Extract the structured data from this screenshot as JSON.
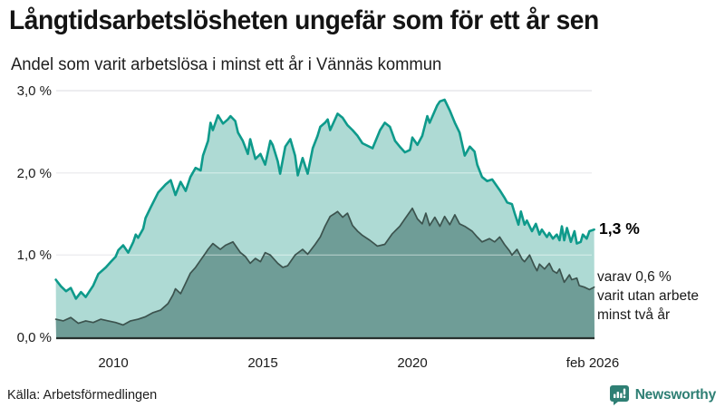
{
  "header": {
    "title": "Långtidsarbetslösheten ungefär som för ett år sen",
    "subtitle": "Andel som varit arbetslösa i minst ett år i Vännäs kommun"
  },
  "chart_data": {
    "type": "area",
    "title": "Andel som varit arbetslösa i minst ett år i Vännäs kommun",
    "xlabel": "",
    "ylabel": "",
    "x_axis": {
      "ticks": [
        "2010",
        "2015",
        "2020",
        "feb 2026"
      ],
      "tick_positions": [
        2010,
        2015,
        2020,
        2026.08
      ],
      "range": [
        2008.08,
        2026.17
      ]
    },
    "y_axis": {
      "ticks": [
        "3,0 %",
        "2,0 %",
        "1,0 %",
        "0,0 %"
      ],
      "tick_values": [
        3,
        2,
        1,
        0
      ],
      "range": [
        0,
        3
      ],
      "grid": true
    },
    "series": [
      {
        "name": "Arbetslösa minst ett år",
        "stroke": "#0e9a8b",
        "fill": "#aedad4",
        "latest_label": "1,3 %",
        "points": [
          [
            2008.08,
            0.7
          ],
          [
            2008.25,
            0.62
          ],
          [
            2008.42,
            0.56
          ],
          [
            2008.58,
            0.6
          ],
          [
            2008.75,
            0.47
          ],
          [
            2008.92,
            0.55
          ],
          [
            2009.08,
            0.49
          ],
          [
            2009.33,
            0.63
          ],
          [
            2009.5,
            0.77
          ],
          [
            2009.75,
            0.85
          ],
          [
            2009.92,
            0.92
          ],
          [
            2010.08,
            0.98
          ],
          [
            2010.17,
            1.06
          ],
          [
            2010.33,
            1.12
          ],
          [
            2010.5,
            1.03
          ],
          [
            2010.67,
            1.16
          ],
          [
            2010.75,
            1.25
          ],
          [
            2010.83,
            1.21
          ],
          [
            2011.0,
            1.32
          ],
          [
            2011.08,
            1.45
          ],
          [
            2011.25,
            1.58
          ],
          [
            2011.5,
            1.76
          ],
          [
            2011.75,
            1.86
          ],
          [
            2011.92,
            1.91
          ],
          [
            2012.08,
            1.73
          ],
          [
            2012.25,
            1.89
          ],
          [
            2012.42,
            1.78
          ],
          [
            2012.58,
            1.95
          ],
          [
            2012.75,
            2.06
          ],
          [
            2012.92,
            2.03
          ],
          [
            2013.0,
            2.21
          ],
          [
            2013.17,
            2.39
          ],
          [
            2013.25,
            2.61
          ],
          [
            2013.33,
            2.52
          ],
          [
            2013.5,
            2.7
          ],
          [
            2013.67,
            2.6
          ],
          [
            2013.83,
            2.65
          ],
          [
            2013.92,
            2.69
          ],
          [
            2014.08,
            2.63
          ],
          [
            2014.17,
            2.49
          ],
          [
            2014.33,
            2.39
          ],
          [
            2014.5,
            2.23
          ],
          [
            2014.58,
            2.41
          ],
          [
            2014.75,
            2.17
          ],
          [
            2014.92,
            2.23
          ],
          [
            2015.08,
            2.1
          ],
          [
            2015.25,
            2.39
          ],
          [
            2015.33,
            2.34
          ],
          [
            2015.5,
            2.14
          ],
          [
            2015.58,
            1.99
          ],
          [
            2015.75,
            2.32
          ],
          [
            2015.92,
            2.41
          ],
          [
            2016.08,
            2.21
          ],
          [
            2016.17,
            1.97
          ],
          [
            2016.33,
            2.18
          ],
          [
            2016.5,
            1.99
          ],
          [
            2016.67,
            2.3
          ],
          [
            2016.83,
            2.45
          ],
          [
            2016.92,
            2.56
          ],
          [
            2017.08,
            2.61
          ],
          [
            2017.17,
            2.65
          ],
          [
            2017.25,
            2.52
          ],
          [
            2017.5,
            2.72
          ],
          [
            2017.67,
            2.67
          ],
          [
            2017.83,
            2.58
          ],
          [
            2018.0,
            2.52
          ],
          [
            2018.17,
            2.45
          ],
          [
            2018.33,
            2.36
          ],
          [
            2018.67,
            2.3
          ],
          [
            2018.92,
            2.52
          ],
          [
            2019.08,
            2.61
          ],
          [
            2019.25,
            2.56
          ],
          [
            2019.42,
            2.39
          ],
          [
            2019.58,
            2.32
          ],
          [
            2019.75,
            2.25
          ],
          [
            2019.92,
            2.28
          ],
          [
            2020.0,
            2.43
          ],
          [
            2020.17,
            2.34
          ],
          [
            2020.33,
            2.45
          ],
          [
            2020.5,
            2.69
          ],
          [
            2020.58,
            2.61
          ],
          [
            2020.83,
            2.82
          ],
          [
            2020.92,
            2.87
          ],
          [
            2021.08,
            2.89
          ],
          [
            2021.25,
            2.76
          ],
          [
            2021.42,
            2.61
          ],
          [
            2021.58,
            2.49
          ],
          [
            2021.75,
            2.21
          ],
          [
            2021.92,
            2.32
          ],
          [
            2022.08,
            2.26
          ],
          [
            2022.17,
            2.1
          ],
          [
            2022.33,
            1.95
          ],
          [
            2022.5,
            1.9
          ],
          [
            2022.67,
            1.92
          ],
          [
            2022.92,
            1.79
          ],
          [
            2023.08,
            1.7
          ],
          [
            2023.17,
            1.64
          ],
          [
            2023.33,
            1.62
          ],
          [
            2023.42,
            1.51
          ],
          [
            2023.55,
            1.37
          ],
          [
            2023.63,
            1.53
          ],
          [
            2023.75,
            1.37
          ],
          [
            2023.83,
            1.42
          ],
          [
            2024.0,
            1.29
          ],
          [
            2024.13,
            1.38
          ],
          [
            2024.25,
            1.25
          ],
          [
            2024.33,
            1.31
          ],
          [
            2024.5,
            1.22
          ],
          [
            2024.58,
            1.27
          ],
          [
            2024.7,
            1.2
          ],
          [
            2024.83,
            1.25
          ],
          [
            2024.92,
            1.18
          ],
          [
            2025.0,
            1.35
          ],
          [
            2025.08,
            1.18
          ],
          [
            2025.17,
            1.33
          ],
          [
            2025.3,
            1.16
          ],
          [
            2025.42,
            1.29
          ],
          [
            2025.5,
            1.14
          ],
          [
            2025.63,
            1.16
          ],
          [
            2025.7,
            1.25
          ],
          [
            2025.83,
            1.2
          ],
          [
            2025.92,
            1.29
          ],
          [
            2026.08,
            1.31
          ]
        ]
      },
      {
        "name": "Arbetslösa minst två år",
        "stroke": "#3c534e",
        "fill": "#6f9d97",
        "latest_label": "0,6 %",
        "points": [
          [
            2008.08,
            0.22
          ],
          [
            2008.33,
            0.2
          ],
          [
            2008.58,
            0.24
          ],
          [
            2008.83,
            0.17
          ],
          [
            2009.08,
            0.2
          ],
          [
            2009.33,
            0.18
          ],
          [
            2009.58,
            0.22
          ],
          [
            2009.83,
            0.2
          ],
          [
            2010.08,
            0.18
          ],
          [
            2010.33,
            0.15
          ],
          [
            2010.58,
            0.2
          ],
          [
            2010.83,
            0.22
          ],
          [
            2011.08,
            0.25
          ],
          [
            2011.33,
            0.3
          ],
          [
            2011.58,
            0.33
          ],
          [
            2011.83,
            0.41
          ],
          [
            2012.0,
            0.52
          ],
          [
            2012.08,
            0.59
          ],
          [
            2012.25,
            0.53
          ],
          [
            2012.42,
            0.66
          ],
          [
            2012.58,
            0.78
          ],
          [
            2012.75,
            0.85
          ],
          [
            2012.92,
            0.94
          ],
          [
            2013.08,
            1.02
          ],
          [
            2013.17,
            1.07
          ],
          [
            2013.33,
            1.14
          ],
          [
            2013.58,
            1.07
          ],
          [
            2013.75,
            1.12
          ],
          [
            2014.0,
            1.16
          ],
          [
            2014.25,
            1.03
          ],
          [
            2014.42,
            0.98
          ],
          [
            2014.58,
            0.9
          ],
          [
            2014.75,
            0.96
          ],
          [
            2014.92,
            0.92
          ],
          [
            2015.08,
            1.03
          ],
          [
            2015.25,
            1.0
          ],
          [
            2015.5,
            0.9
          ],
          [
            2015.67,
            0.85
          ],
          [
            2015.83,
            0.87
          ],
          [
            2016.08,
            1.0
          ],
          [
            2016.33,
            1.07
          ],
          [
            2016.5,
            1.01
          ],
          [
            2016.75,
            1.13
          ],
          [
            2016.92,
            1.22
          ],
          [
            2017.08,
            1.35
          ],
          [
            2017.25,
            1.47
          ],
          [
            2017.42,
            1.51
          ],
          [
            2017.5,
            1.53
          ],
          [
            2017.67,
            1.46
          ],
          [
            2017.83,
            1.51
          ],
          [
            2018.0,
            1.36
          ],
          [
            2018.17,
            1.29
          ],
          [
            2018.33,
            1.24
          ],
          [
            2018.58,
            1.18
          ],
          [
            2018.83,
            1.11
          ],
          [
            2019.08,
            1.13
          ],
          [
            2019.33,
            1.26
          ],
          [
            2019.58,
            1.35
          ],
          [
            2019.75,
            1.44
          ],
          [
            2020.0,
            1.57
          ],
          [
            2020.17,
            1.44
          ],
          [
            2020.33,
            1.38
          ],
          [
            2020.45,
            1.51
          ],
          [
            2020.58,
            1.36
          ],
          [
            2020.75,
            1.46
          ],
          [
            2020.92,
            1.35
          ],
          [
            2021.08,
            1.47
          ],
          [
            2021.25,
            1.37
          ],
          [
            2021.42,
            1.49
          ],
          [
            2021.58,
            1.38
          ],
          [
            2021.75,
            1.35
          ],
          [
            2022.0,
            1.29
          ],
          [
            2022.17,
            1.22
          ],
          [
            2022.33,
            1.16
          ],
          [
            2022.58,
            1.2
          ],
          [
            2022.75,
            1.16
          ],
          [
            2022.92,
            1.22
          ],
          [
            2023.08,
            1.13
          ],
          [
            2023.25,
            1.05
          ],
          [
            2023.33,
            1.0
          ],
          [
            2023.5,
            1.07
          ],
          [
            2023.67,
            0.95
          ],
          [
            2023.75,
            0.92
          ],
          [
            2023.92,
            1.0
          ],
          [
            2024.08,
            0.87
          ],
          [
            2024.17,
            0.81
          ],
          [
            2024.25,
            0.89
          ],
          [
            2024.42,
            0.83
          ],
          [
            2024.58,
            0.9
          ],
          [
            2024.7,
            0.81
          ],
          [
            2024.83,
            0.78
          ],
          [
            2024.92,
            0.83
          ],
          [
            2025.08,
            0.67
          ],
          [
            2025.25,
            0.76
          ],
          [
            2025.33,
            0.7
          ],
          [
            2025.5,
            0.72
          ],
          [
            2025.58,
            0.63
          ],
          [
            2025.75,
            0.61
          ],
          [
            2025.92,
            0.58
          ],
          [
            2026.08,
            0.61
          ]
        ]
      }
    ],
    "annotations": [
      {
        "text": "1,3 %"
      },
      {
        "text": "varav 0,6 %\nvarit utan arbete\nminst två år"
      }
    ],
    "legend_position": "none",
    "colors": {
      "gridline": "#e2e2e6",
      "baseline": "#28322f",
      "background": "#ffffff"
    }
  },
  "annotations": {
    "latest_value": "1,3 %",
    "secondary": "varav 0,6 %\nvarit utan arbete\nminst två år"
  },
  "footer": {
    "source": "Källa: Arbetsförmedlingen",
    "brand": "Newsworthy",
    "brand_color": "#2e7f74"
  }
}
